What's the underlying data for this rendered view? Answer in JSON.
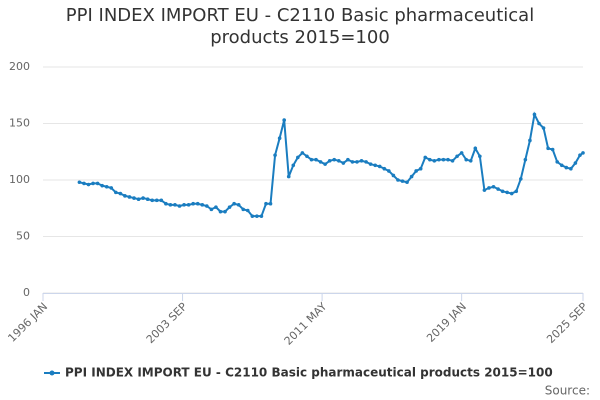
{
  "chart_data": {
    "type": "line",
    "title": "PPI INDEX IMPORT EU - C2110 Basic pharmaceutical products 2015=100",
    "source": "Source:",
    "x": [
      "1998 JAN",
      "1998 APR",
      "1998 JUL",
      "1998 OCT",
      "1999 JAN",
      "1999 APR",
      "1999 JUL",
      "1999 OCT",
      "2000 JAN",
      "2000 APR",
      "2000 JUL",
      "2000 OCT",
      "2001 JAN",
      "2001 APR",
      "2001 JUL",
      "2001 OCT",
      "2002 JAN",
      "2002 APR",
      "2002 JUL",
      "2002 OCT",
      "2003 JAN",
      "2003 APR",
      "2003 JUL",
      "2003 OCT",
      "2004 JAN",
      "2004 APR",
      "2004 JUL",
      "2004 OCT",
      "2005 JAN",
      "2005 APR",
      "2005 JUL",
      "2005 OCT",
      "2006 JAN",
      "2006 APR",
      "2006 JUL",
      "2006 OCT",
      "2007 JAN",
      "2007 APR",
      "2007 JUL",
      "2007 OCT",
      "2008 JAN",
      "2008 APR",
      "2008 JUL",
      "2008 OCT",
      "2009 JAN",
      "2009 APR",
      "2009 JUL",
      "2009 OCT",
      "2010 JAN",
      "2010 APR",
      "2010 JUL",
      "2010 OCT",
      "2011 JAN",
      "2011 APR",
      "2011 JUL",
      "2011 OCT",
      "2012 JAN",
      "2012 APR",
      "2012 JUL",
      "2012 OCT",
      "2013 JAN",
      "2013 APR",
      "2013 JUL",
      "2013 OCT",
      "2014 JAN",
      "2014 APR",
      "2014 JUL",
      "2014 OCT",
      "2015 JAN",
      "2015 APR",
      "2015 JUL",
      "2015 OCT",
      "2016 JAN",
      "2016 APR",
      "2016 JUL",
      "2016 OCT",
      "2017 JAN",
      "2017 APR",
      "2017 JUL",
      "2017 OCT",
      "2018 JAN",
      "2018 APR",
      "2018 JUL",
      "2018 OCT",
      "2019 JAN",
      "2019 APR",
      "2019 JUL",
      "2019 OCT",
      "2020 JAN",
      "2020 APR",
      "2020 JUL",
      "2020 OCT",
      "2021 JAN",
      "2021 APR",
      "2021 JUL",
      "2021 OCT",
      "2022 JAN",
      "2022 APR",
      "2022 JUL",
      "2022 OCT",
      "2023 JAN",
      "2023 APR",
      "2023 JUL",
      "2023 OCT",
      "2024 JAN",
      "2024 APR",
      "2024 JUL",
      "2024 OCT",
      "2025 JAN",
      "2025 APR",
      "2025 JUL",
      "2025 SEP"
    ],
    "series": [
      {
        "name": "PPI INDEX IMPORT EU - C2110 Basic pharmaceutical products 2015=100",
        "color": "#1a7dc0",
        "values": [
          98,
          97,
          96,
          97,
          97,
          95,
          94,
          93,
          89,
          88,
          86,
          85,
          84,
          83,
          84,
          83,
          82,
          82,
          82,
          79,
          78,
          78,
          77,
          78,
          78,
          79,
          79,
          78,
          77,
          74,
          76,
          72,
          72,
          76,
          79,
          78,
          74,
          73,
          68,
          68,
          68,
          79,
          79,
          122,
          137,
          153,
          103,
          113,
          120,
          124,
          121,
          118,
          118,
          116,
          114,
          117,
          118,
          117,
          115,
          118,
          116,
          116,
          117,
          116,
          114,
          113,
          112,
          110,
          108,
          104,
          100,
          99,
          98,
          103,
          108,
          110,
          120,
          118,
          117,
          118,
          118,
          118,
          117,
          121,
          124,
          118,
          117,
          128,
          121,
          91,
          93,
          94,
          92,
          90,
          89,
          88,
          90,
          101,
          118,
          135,
          158,
          150,
          146,
          128,
          127,
          116,
          113,
          111,
          110,
          115,
          122,
          124
        ]
      }
    ],
    "xlim": [
      "1996 JAN",
      "2025 SEP"
    ],
    "xticks": [
      "1996 JAN",
      "2003 SEP",
      "2011 MAY",
      "2019 JAN",
      "2025 SEP"
    ],
    "ylim": [
      0,
      200
    ],
    "yticks": [
      0,
      50,
      100,
      150,
      200
    ],
    "grid": true
  }
}
